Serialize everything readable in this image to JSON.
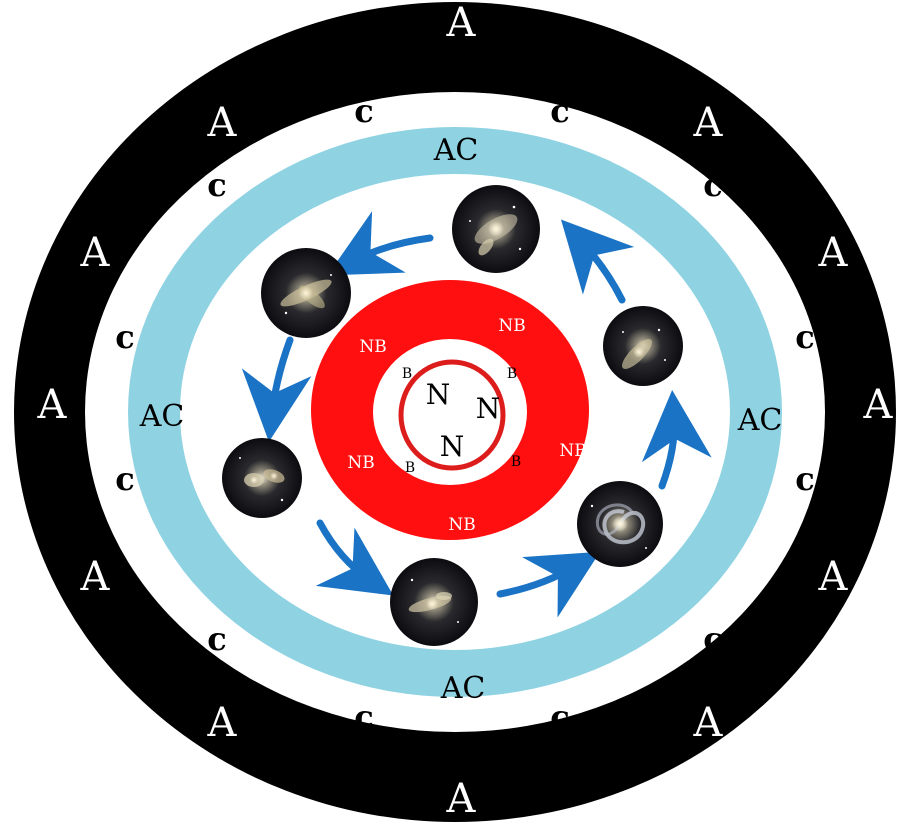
{
  "colors": {
    "outer_ring": "#000000",
    "c_ring": "#ffffff",
    "ac_ring": "#8fd3e3",
    "middle_zone": "#ffffff",
    "nb_ring": "#ff0f0f",
    "core": "#ffffff",
    "core_circle": "#dd1c1c",
    "arrow": "#1a73c5",
    "label_on_dark": "#ffffff",
    "label_on_light": "#000000"
  },
  "labels": {
    "a": [
      "A",
      "A",
      "A",
      "A",
      "A",
      "A",
      "A",
      "A",
      "A",
      "A",
      "A",
      "A"
    ],
    "c": [
      "c",
      "c",
      "c",
      "c",
      "c",
      "c",
      "c",
      "c",
      "c",
      "c",
      "c",
      "c"
    ],
    "ac": [
      "AC",
      "AC",
      "AC",
      "AC"
    ],
    "nb": [
      "NB",
      "NB",
      "NB",
      "NB",
      "NB"
    ],
    "b": [
      "B",
      "B",
      "B",
      "B"
    ],
    "n": [
      "N",
      "N",
      "N"
    ]
  },
  "galaxies": [
    {
      "name": "galaxy-1-icon"
    },
    {
      "name": "galaxy-2-icon"
    },
    {
      "name": "galaxy-3-icon"
    },
    {
      "name": "galaxy-4-icon"
    },
    {
      "name": "galaxy-5-icon"
    },
    {
      "name": "galaxy-6-icon"
    },
    {
      "name": "galaxy-7-icon"
    }
  ]
}
